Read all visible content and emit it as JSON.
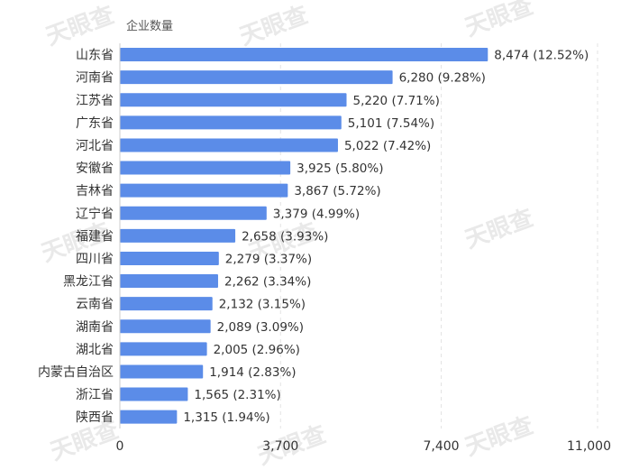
{
  "chart_data": {
    "type": "bar",
    "orientation": "horizontal",
    "ylabel": "企业数量",
    "categories": [
      "山东省",
      "河南省",
      "江苏省",
      "广东省",
      "河北省",
      "安徽省",
      "吉林省",
      "辽宁省",
      "福建省",
      "四川省",
      "黑龙江省",
      "云南省",
      "湖南省",
      "湖北省",
      "内蒙古自治区",
      "浙江省",
      "陕西省"
    ],
    "values": [
      8474,
      6280,
      5220,
      5101,
      5022,
      3925,
      3867,
      3379,
      2658,
      2279,
      2262,
      2132,
      2089,
      2005,
      1914,
      1565,
      1315
    ],
    "data_labels": [
      "8,474  (12.52%)",
      "6,280  (9.28%)",
      "5,220  (7.71%)",
      "5,101  (7.54%)",
      "5,022  (7.42%)",
      "3,925  (5.80%)",
      "3,867  (5.72%)",
      "3,379  (4.99%)",
      "2,658  (3.93%)",
      "2,279  (3.37%)",
      "2,262  (3.34%)",
      "2,132  (3.15%)",
      "2,089  (3.09%)",
      "2,005  (2.96%)",
      "1,914  (2.83%)",
      "1,565  (2.31%)",
      "1,315  (1.94%)"
    ],
    "xlim": [
      0,
      11000
    ],
    "xticks": [
      0,
      3700,
      7400,
      11000
    ],
    "xtick_labels": [
      "0",
      "3,700",
      "7,400",
      "11,000"
    ],
    "grid": "vertical dashed",
    "bar_color": "#5b8ce8",
    "watermark": "天眼查"
  }
}
